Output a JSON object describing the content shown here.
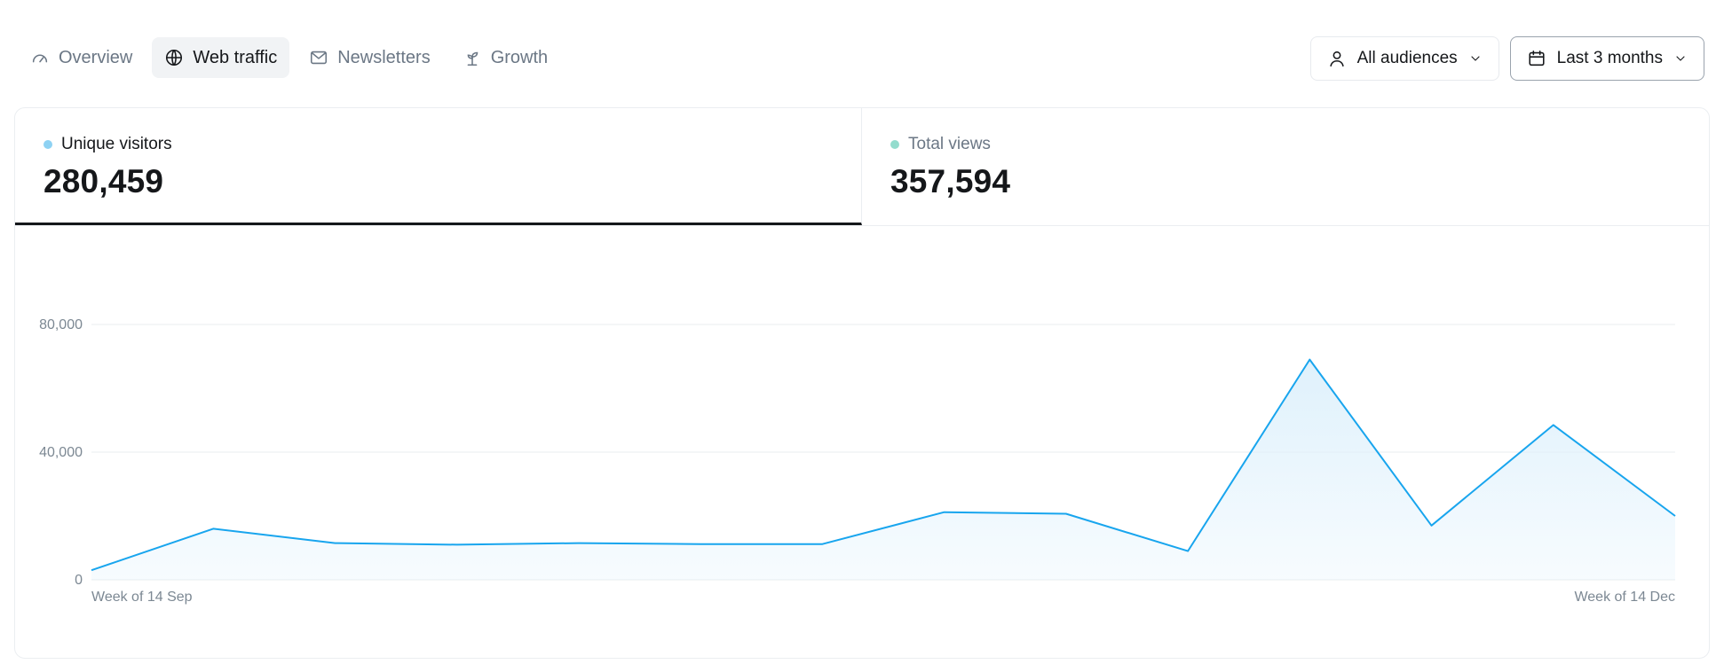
{
  "nav": {
    "tabs": [
      {
        "label": "Overview",
        "icon": "gauge-icon",
        "active": false
      },
      {
        "label": "Web traffic",
        "icon": "globe-icon",
        "active": true
      },
      {
        "label": "Newsletters",
        "icon": "mail-icon",
        "active": false
      },
      {
        "label": "Growth",
        "icon": "sprout-icon",
        "active": false
      }
    ]
  },
  "filters": {
    "audience": {
      "label": "All audiences",
      "icon": "user-icon"
    },
    "range": {
      "label": "Last 3 months",
      "icon": "calendar-icon"
    }
  },
  "kpis": [
    {
      "label": "Unique visitors",
      "value": "280,459",
      "dot_color": "#8ed2f3",
      "active": true
    },
    {
      "label": "Total views",
      "value": "357,594",
      "dot_color": "#93dccd",
      "active": false
    }
  ],
  "colors": {
    "line": "#18a5ee",
    "fill": "#dff1fc",
    "grid": "#e9ecef",
    "text_muted": "#7c8893"
  },
  "chart_data": {
    "type": "area",
    "series": [
      {
        "values": [
          3000,
          16000,
          11500,
          11000,
          11500,
          11200,
          11200,
          21200,
          20700,
          9000,
          69000,
          17000,
          48500,
          20000
        ]
      }
    ],
    "x_labels": {
      "first": "Week of 14 Sep",
      "last": "Week of 14 Dec"
    },
    "y_ticks": [
      {
        "value": 0,
        "label": "0"
      },
      {
        "value": 40000,
        "label": "40,000"
      },
      {
        "value": 80000,
        "label": "80,000"
      }
    ],
    "ylim": [
      0,
      80000
    ],
    "grid": true
  }
}
